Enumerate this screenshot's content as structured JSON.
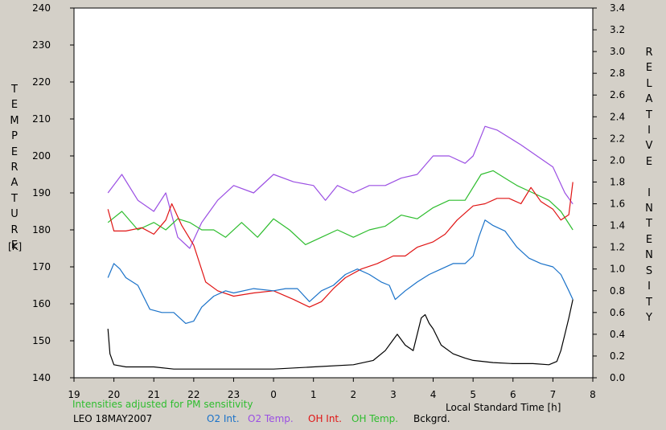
{
  "chart_data": {
    "type": "line",
    "left_axis": {
      "label_letters": [
        "T",
        "E",
        "M",
        "P",
        "E",
        "R",
        "A",
        "T",
        "U",
        "R",
        "E"
      ],
      "unit": "[K]",
      "ylim": [
        140,
        240
      ],
      "ticks": [
        140,
        150,
        160,
        170,
        180,
        190,
        200,
        210,
        220,
        230,
        240
      ]
    },
    "right_axis": {
      "label_letters": [
        "R",
        "E",
        "L",
        "A",
        "T",
        "I",
        "V",
        "E",
        "",
        "I",
        "N",
        "T",
        "E",
        "N",
        "S",
        "I",
        "T",
        "Y"
      ],
      "ylim": [
        0.0,
        3.4
      ],
      "ticks": [
        "0.0",
        "0.2",
        "0.4",
        "0.6",
        "0.8",
        "1.0",
        "1.2",
        "1.4",
        "1.6",
        "1.8",
        "2.0",
        "2.2",
        "2.4",
        "2.6",
        "2.8",
        "3.0",
        "3.2",
        "3.4"
      ]
    },
    "x_axis": {
      "label": "Local Standard Time [h]",
      "xlim": [
        19,
        32
      ],
      "ticks": [
        {
          "v": 19,
          "t": "19"
        },
        {
          "v": 20,
          "t": "20"
        },
        {
          "v": 21,
          "t": "21"
        },
        {
          "v": 22,
          "t": "22"
        },
        {
          "v": 23,
          "t": "23"
        },
        {
          "v": 24,
          "t": "0"
        },
        {
          "v": 25,
          "t": "1"
        },
        {
          "v": 26,
          "t": "2"
        },
        {
          "v": 27,
          "t": "3"
        },
        {
          "v": 28,
          "t": "4"
        },
        {
          "v": 29,
          "t": "5"
        },
        {
          "v": 30,
          "t": "6"
        },
        {
          "v": 31,
          "t": "7"
        },
        {
          "v": 32,
          "t": "8"
        }
      ]
    },
    "note": "Intensities adjusted for PM sensitivity",
    "station": "LEO 18MAY2007",
    "series": [
      {
        "name": "O2 Int.",
        "axis": "right",
        "color": "#1a72c9",
        "x": [
          19.85,
          20.0,
          20.15,
          20.3,
          20.6,
          20.9,
          21.2,
          21.5,
          21.8,
          22.0,
          22.2,
          22.5,
          22.8,
          23.0,
          23.5,
          24.0,
          24.3,
          24.6,
          24.9,
          25.2,
          25.5,
          25.8,
          26.1,
          26.4,
          26.7,
          26.9,
          27.05,
          27.3,
          27.6,
          27.9,
          28.2,
          28.5,
          28.8,
          29.0,
          29.15,
          29.3,
          29.5,
          29.8,
          30.1,
          30.4,
          30.7,
          31.0,
          31.2,
          31.4,
          31.5
        ],
        "values": [
          0.92,
          1.05,
          1.0,
          0.92,
          0.85,
          0.63,
          0.6,
          0.6,
          0.5,
          0.52,
          0.65,
          0.75,
          0.8,
          0.78,
          0.82,
          0.8,
          0.82,
          0.82,
          0.7,
          0.8,
          0.85,
          0.95,
          1.0,
          0.95,
          0.88,
          0.85,
          0.72,
          0.8,
          0.88,
          0.95,
          1.0,
          1.05,
          1.05,
          1.12,
          1.3,
          1.45,
          1.4,
          1.35,
          1.2,
          1.1,
          1.05,
          1.02,
          0.95,
          0.8,
          0.72
        ]
      },
      {
        "name": "O2 Temp.",
        "axis": "left",
        "color": "#9b4fe3",
        "x": [
          19.85,
          20.2,
          20.6,
          21.0,
          21.3,
          21.6,
          21.9,
          22.2,
          22.6,
          23.0,
          23.5,
          24.0,
          24.5,
          25.0,
          25.3,
          25.6,
          26.0,
          26.4,
          26.8,
          27.2,
          27.6,
          28.0,
          28.4,
          28.8,
          29.0,
          29.3,
          29.6,
          29.9,
          30.2,
          30.6,
          31.0,
          31.3,
          31.5
        ],
        "values": [
          190,
          195,
          188,
          185,
          190,
          178,
          175,
          182,
          188,
          192,
          190,
          195,
          193,
          192,
          188,
          192,
          190,
          192,
          192,
          194,
          195,
          200,
          200,
          198,
          200,
          208,
          207,
          205,
          203,
          200,
          197,
          190,
          187
        ]
      },
      {
        "name": "OH Int.",
        "axis": "right",
        "color": "#e01414",
        "x": [
          19.85,
          20.0,
          20.3,
          20.7,
          21.0,
          21.3,
          21.45,
          21.7,
          22.0,
          22.3,
          22.6,
          23.0,
          23.5,
          24.0,
          24.5,
          24.9,
          25.2,
          25.5,
          25.8,
          26.2,
          26.6,
          27.0,
          27.3,
          27.6,
          28.0,
          28.3,
          28.6,
          29.0,
          29.3,
          29.6,
          29.9,
          30.2,
          30.45,
          30.7,
          31.0,
          31.2,
          31.4,
          31.5
        ],
        "values": [
          1.55,
          1.35,
          1.35,
          1.38,
          1.32,
          1.45,
          1.6,
          1.4,
          1.22,
          0.88,
          0.8,
          0.75,
          0.78,
          0.8,
          0.72,
          0.65,
          0.7,
          0.82,
          0.92,
          1.0,
          1.05,
          1.12,
          1.12,
          1.2,
          1.25,
          1.32,
          1.45,
          1.58,
          1.6,
          1.65,
          1.65,
          1.6,
          1.75,
          1.62,
          1.55,
          1.45,
          1.5,
          1.8
        ]
      },
      {
        "name": "OH Temp.",
        "axis": "left",
        "color": "#2ebd2e",
        "x": [
          19.85,
          20.2,
          20.6,
          21.0,
          21.3,
          21.6,
          21.9,
          22.2,
          22.5,
          22.8,
          23.2,
          23.6,
          24.0,
          24.4,
          24.8,
          25.2,
          25.6,
          26.0,
          26.4,
          26.8,
          27.2,
          27.6,
          28.0,
          28.4,
          28.8,
          29.2,
          29.5,
          29.8,
          30.1,
          30.5,
          30.9,
          31.2,
          31.5
        ],
        "values": [
          182,
          185,
          180,
          182,
          180,
          183,
          182,
          180,
          180,
          178,
          182,
          178,
          183,
          180,
          176,
          178,
          180,
          178,
          180,
          181,
          184,
          183,
          186,
          188,
          188,
          195,
          196,
          194,
          192,
          190,
          188,
          185,
          180
        ]
      },
      {
        "name": "Bckgrd.",
        "axis": "right",
        "color": "#000000",
        "x": [
          19.85,
          19.9,
          20.0,
          20.3,
          20.6,
          21.0,
          21.5,
          22.0,
          23.0,
          24.0,
          25.0,
          26.0,
          26.5,
          26.8,
          27.0,
          27.1,
          27.3,
          27.5,
          27.7,
          27.8,
          27.9,
          28.0,
          28.2,
          28.5,
          28.8,
          29.0,
          29.5,
          30.0,
          30.5,
          30.9,
          31.1,
          31.2,
          31.3,
          31.4,
          31.5
        ],
        "values": [
          0.45,
          0.22,
          0.12,
          0.1,
          0.1,
          0.1,
          0.08,
          0.08,
          0.08,
          0.08,
          0.1,
          0.12,
          0.16,
          0.25,
          0.35,
          0.4,
          0.3,
          0.25,
          0.55,
          0.58,
          0.5,
          0.45,
          0.3,
          0.22,
          0.18,
          0.16,
          0.14,
          0.13,
          0.13,
          0.12,
          0.15,
          0.25,
          0.4,
          0.55,
          0.72
        ]
      }
    ]
  }
}
